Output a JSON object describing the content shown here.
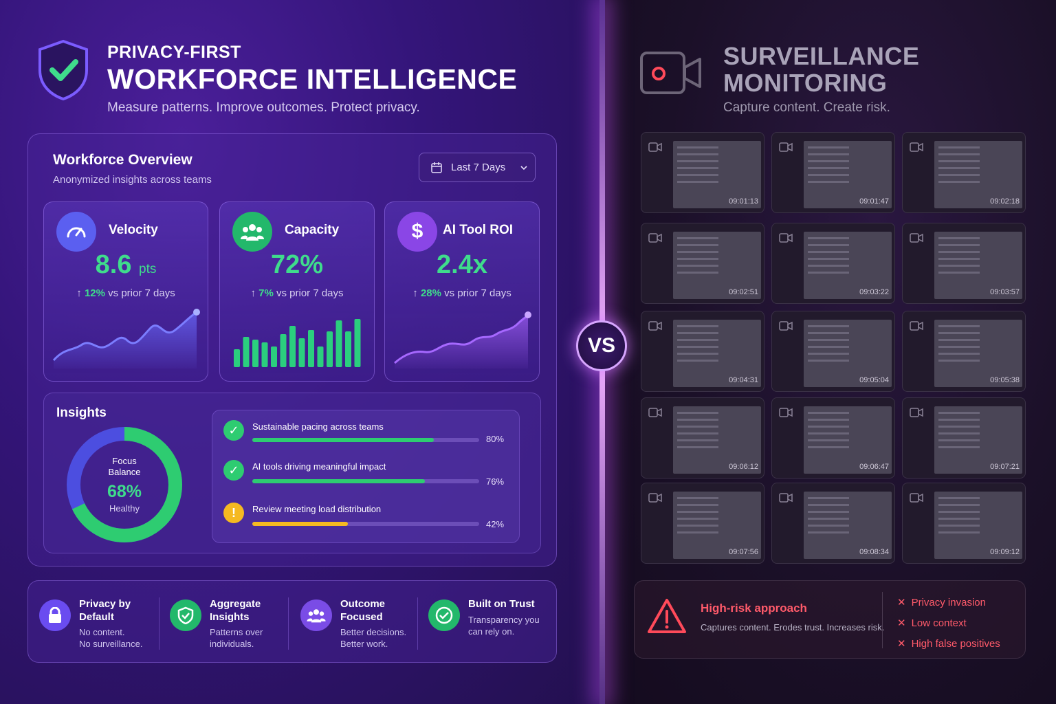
{
  "left": {
    "kicker": "PRIVACY-FIRST",
    "title": "WORKFORCE INTELLIGENCE",
    "subtitle": "Measure patterns. Improve outcomes. Protect privacy.",
    "overview": {
      "title": "Workforce Overview",
      "subtitle": "Anonymized insights across teams",
      "date_range": "Last 7 Days"
    },
    "cards": [
      {
        "title": "Velocity",
        "value": "8.6",
        "unit": "pts",
        "delta": "12%",
        "delta_text": "vs prior 7 days",
        "icon": "speedometer-icon",
        "color": "#5b5ff0"
      },
      {
        "title": "Capacity",
        "value": "72%",
        "unit": "",
        "delta": "7%",
        "delta_text": "vs prior 7 days",
        "icon": "team-icon",
        "color": "#23b86b"
      },
      {
        "title": "AI Tool ROI",
        "value": "2.4x",
        "unit": "",
        "delta": "28%",
        "delta_text": "vs prior 7 days",
        "icon": "dollar-icon",
        "color": "#8a46e6"
      }
    ],
    "insights": {
      "title": "Insights",
      "donut": {
        "label": "Focus Balance",
        "value": "68%",
        "status": "Healthy",
        "fraction": 0.68
      },
      "items": [
        {
          "text": "Sustainable pacing across teams",
          "pct": "80%",
          "fraction": 0.8,
          "status": "check",
          "color": "#2ecc71"
        },
        {
          "text": "AI tools driving meaningful impact",
          "pct": "76%",
          "fraction": 0.76,
          "status": "check",
          "color": "#2ecc71"
        },
        {
          "text": "Review meeting load distribution",
          "pct": "42%",
          "fraction": 0.42,
          "status": "warning",
          "color": "#f5b921"
        }
      ]
    },
    "features": [
      {
        "title": "Privacy by Default",
        "desc1": "No content.",
        "desc2": "No surveillance.",
        "icon": "lock-icon"
      },
      {
        "title": "Aggregate Insights",
        "desc1": "Patterns over",
        "desc2": "individuals.",
        "icon": "shield-check-icon"
      },
      {
        "title": "Outcome Focused",
        "desc1": "Better decisions.",
        "desc2": "Better work.",
        "icon": "team-icon"
      },
      {
        "title": "Built on Trust",
        "desc1": "Transparency you",
        "desc2": "can rely on.",
        "icon": "check-circle-icon"
      }
    ]
  },
  "vs": "VS",
  "right": {
    "title_line1": "SURVEILLANCE",
    "title_line2": "MONITORING",
    "subtitle": "Capture content. Create risk.",
    "timestamps": [
      "09:01:13",
      "09:01:47",
      "09:02:18",
      "09:02:51",
      "09:03:22",
      "09:03:57",
      "09:04:31",
      "09:05:04",
      "09:05:38",
      "09:06:12",
      "09:06:47",
      "09:07:21",
      "09:07:56",
      "09:08:34",
      "09:09:12"
    ],
    "risk": {
      "title": "High-risk approach",
      "desc": "Captures content. Erodes trust. Increases risk.",
      "items": [
        "Privacy invasion",
        "Low context",
        "High false positives"
      ]
    }
  },
  "colors": {
    "accent_green": "#3fdc8c",
    "danger": "#ff5a6a",
    "warning": "#f5b921"
  }
}
